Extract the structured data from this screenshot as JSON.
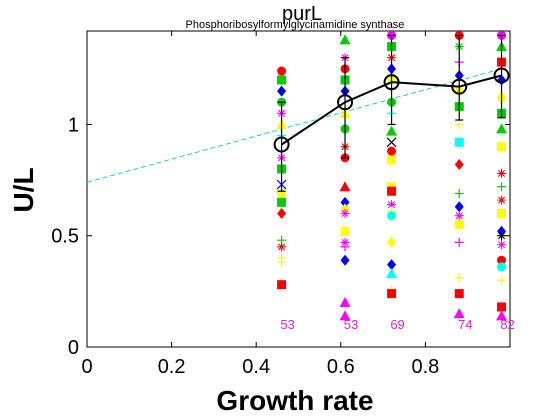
{
  "chart_data": {
    "type": "scatter",
    "title": "purL",
    "subtitle": "Phosphoribosylformylglycinamidine synthase",
    "xlabel": "Growth rate",
    "ylabel": "U/L",
    "xlim": [
      0,
      1.0
    ],
    "ylim": [
      0,
      1.42
    ],
    "xticks": [
      "0",
      "0.2",
      "0.4",
      "0.6",
      "0.8"
    ],
    "yticks": [
      "0",
      "0.5",
      "1"
    ],
    "xtick_values": [
      0,
      0.2,
      0.4,
      0.6,
      0.8
    ],
    "ytick_values": [
      0,
      0.5,
      1
    ],
    "grid": false,
    "mean_series": {
      "x": [
        0.46,
        0.61,
        0.72,
        0.88,
        0.98
      ],
      "y": [
        0.91,
        1.1,
        1.19,
        1.17,
        1.22
      ],
      "err_low": [
        0.7,
        0.85,
        1.0,
        1.02,
        1.03
      ],
      "err_high": [
        1.1,
        1.3,
        1.4,
        1.4,
        1.4
      ],
      "color": "#000000"
    },
    "fit_line": {
      "x": [
        0.0,
        0.98
      ],
      "y": [
        0.74,
        1.25
      ],
      "color": "#22c8e0"
    },
    "counts": [
      {
        "x": 0.46,
        "label": "53"
      },
      {
        "x": 0.61,
        "label": "53"
      },
      {
        "x": 0.72,
        "label": "69"
      },
      {
        "x": 0.88,
        "label": "74"
      },
      {
        "x": 0.98,
        "label": "82"
      }
    ],
    "scatter_points": [
      {
        "x": 0.46,
        "y": 1.24,
        "c": "#ff0000",
        "m": "circle"
      },
      {
        "x": 0.46,
        "y": 1.2,
        "c": "#00cc00",
        "m": "square"
      },
      {
        "x": 0.46,
        "y": 1.15,
        "c": "#0000ff",
        "m": "diamond"
      },
      {
        "x": 0.46,
        "y": 1.1,
        "c": "#00cc00",
        "m": "circle"
      },
      {
        "x": 0.46,
        "y": 1.05,
        "c": "#ff00ff",
        "m": "star"
      },
      {
        "x": 0.46,
        "y": 1.0,
        "c": "#ffff00",
        "m": "triangle"
      },
      {
        "x": 0.46,
        "y": 0.95,
        "c": "#00ffff",
        "m": "plus"
      },
      {
        "x": 0.46,
        "y": 0.85,
        "c": "#ff00ff",
        "m": "star"
      },
      {
        "x": 0.46,
        "y": 0.8,
        "c": "#00cc00",
        "m": "square"
      },
      {
        "x": 0.46,
        "y": 0.73,
        "c": "#0000ff",
        "m": "x"
      },
      {
        "x": 0.46,
        "y": 0.69,
        "c": "#ffff00",
        "m": "circle"
      },
      {
        "x": 0.46,
        "y": 0.65,
        "c": "#00cc00",
        "m": "square"
      },
      {
        "x": 0.46,
        "y": 0.6,
        "c": "#ff0000",
        "m": "diamond"
      },
      {
        "x": 0.46,
        "y": 0.48,
        "c": "#00cc00",
        "m": "plus"
      },
      {
        "x": 0.46,
        "y": 0.45,
        "c": "#ff0000",
        "m": "star"
      },
      {
        "x": 0.46,
        "y": 0.4,
        "c": "#ffff00",
        "m": "plus"
      },
      {
        "x": 0.46,
        "y": 0.38,
        "c": "#ffff00",
        "m": "plus"
      },
      {
        "x": 0.46,
        "y": 0.28,
        "c": "#ff0000",
        "m": "square"
      },
      {
        "x": 0.61,
        "y": 1.38,
        "c": "#00cc00",
        "m": "triangle"
      },
      {
        "x": 0.61,
        "y": 1.3,
        "c": "#ff00ff",
        "m": "star"
      },
      {
        "x": 0.61,
        "y": 1.25,
        "c": "#ff0000",
        "m": "circle"
      },
      {
        "x": 0.61,
        "y": 1.2,
        "c": "#00cc00",
        "m": "square"
      },
      {
        "x": 0.61,
        "y": 1.15,
        "c": "#0000ff",
        "m": "diamond"
      },
      {
        "x": 0.61,
        "y": 1.05,
        "c": "#ffff00",
        "m": "triangle"
      },
      {
        "x": 0.61,
        "y": 0.98,
        "c": "#00cc00",
        "m": "circle"
      },
      {
        "x": 0.61,
        "y": 0.9,
        "c": "#ff0000",
        "m": "star"
      },
      {
        "x": 0.61,
        "y": 0.85,
        "c": "#ff0000",
        "m": "circle"
      },
      {
        "x": 0.61,
        "y": 0.72,
        "c": "#ff0000",
        "m": "triangle"
      },
      {
        "x": 0.61,
        "y": 0.65,
        "c": "#0000ff",
        "m": "diamond"
      },
      {
        "x": 0.61,
        "y": 0.62,
        "c": "#ffff00",
        "m": "diamond"
      },
      {
        "x": 0.61,
        "y": 0.6,
        "c": "#ff00ff",
        "m": "star"
      },
      {
        "x": 0.61,
        "y": 0.52,
        "c": "#ffff00",
        "m": "square"
      },
      {
        "x": 0.61,
        "y": 0.47,
        "c": "#ff00ff",
        "m": "star"
      },
      {
        "x": 0.61,
        "y": 0.45,
        "c": "#ff00ff",
        "m": "plus"
      },
      {
        "x": 0.61,
        "y": 0.39,
        "c": "#0000ff",
        "m": "diamond"
      },
      {
        "x": 0.61,
        "y": 0.2,
        "c": "#ff00ff",
        "m": "triangle"
      },
      {
        "x": 0.61,
        "y": 0.14,
        "c": "#ff00ff",
        "m": "triangle"
      },
      {
        "x": 0.72,
        "y": 1.4,
        "c": "#ff00ff",
        "m": "circle"
      },
      {
        "x": 0.72,
        "y": 1.35,
        "c": "#00cc00",
        "m": "square"
      },
      {
        "x": 0.72,
        "y": 1.3,
        "c": "#ff0000",
        "m": "star"
      },
      {
        "x": 0.72,
        "y": 1.25,
        "c": "#0000ff",
        "m": "diamond"
      },
      {
        "x": 0.72,
        "y": 1.2,
        "c": "#ffff00",
        "m": "circle"
      },
      {
        "x": 0.72,
        "y": 1.1,
        "c": "#00cc00",
        "m": "circle"
      },
      {
        "x": 0.72,
        "y": 1.05,
        "c": "#00ffff",
        "m": "plus"
      },
      {
        "x": 0.72,
        "y": 0.97,
        "c": "#00cc00",
        "m": "triangle"
      },
      {
        "x": 0.72,
        "y": 0.92,
        "c": "#000000",
        "m": "x"
      },
      {
        "x": 0.72,
        "y": 0.88,
        "c": "#ff0000",
        "m": "circle"
      },
      {
        "x": 0.72,
        "y": 0.84,
        "c": "#ffff00",
        "m": "square"
      },
      {
        "x": 0.72,
        "y": 0.72,
        "c": "#ffff00",
        "m": "square"
      },
      {
        "x": 0.72,
        "y": 0.7,
        "c": "#ff0000",
        "m": "square"
      },
      {
        "x": 0.72,
        "y": 0.64,
        "c": "#ff00ff",
        "m": "star"
      },
      {
        "x": 0.72,
        "y": 0.61,
        "c": "#ffff00",
        "m": "plus"
      },
      {
        "x": 0.72,
        "y": 0.59,
        "c": "#00ffff",
        "m": "circle"
      },
      {
        "x": 0.72,
        "y": 0.47,
        "c": "#ffff00",
        "m": "diamond"
      },
      {
        "x": 0.72,
        "y": 0.37,
        "c": "#0000ff",
        "m": "diamond"
      },
      {
        "x": 0.72,
        "y": 0.33,
        "c": "#00ffff",
        "m": "triangle"
      },
      {
        "x": 0.72,
        "y": 0.26,
        "c": "#ffff00",
        "m": "plus"
      },
      {
        "x": 0.72,
        "y": 0.24,
        "c": "#ff0000",
        "m": "square"
      },
      {
        "x": 0.88,
        "y": 1.4,
        "c": "#ff0000",
        "m": "circle"
      },
      {
        "x": 0.88,
        "y": 1.35,
        "c": "#00cc00",
        "m": "star"
      },
      {
        "x": 0.88,
        "y": 1.28,
        "c": "#ff00ff",
        "m": "plus"
      },
      {
        "x": 0.88,
        "y": 1.22,
        "c": "#0000ff",
        "m": "diamond"
      },
      {
        "x": 0.88,
        "y": 1.15,
        "c": "#ffff00",
        "m": "circle"
      },
      {
        "x": 0.88,
        "y": 1.08,
        "c": "#00cc00",
        "m": "square"
      },
      {
        "x": 0.88,
        "y": 1.0,
        "c": "#ffff00",
        "m": "plus"
      },
      {
        "x": 0.88,
        "y": 0.92,
        "c": "#00ffff",
        "m": "square"
      },
      {
        "x": 0.88,
        "y": 0.82,
        "c": "#ff0000",
        "m": "diamond"
      },
      {
        "x": 0.88,
        "y": 0.69,
        "c": "#00cc00",
        "m": "plus"
      },
      {
        "x": 0.88,
        "y": 0.63,
        "c": "#0000ff",
        "m": "diamond"
      },
      {
        "x": 0.88,
        "y": 0.59,
        "c": "#ff00ff",
        "m": "star"
      },
      {
        "x": 0.88,
        "y": 0.55,
        "c": "#ffff00",
        "m": "square"
      },
      {
        "x": 0.88,
        "y": 0.47,
        "c": "#ff00ff",
        "m": "plus"
      },
      {
        "x": 0.88,
        "y": 0.31,
        "c": "#ffff00",
        "m": "plus"
      },
      {
        "x": 0.88,
        "y": 0.24,
        "c": "#ff0000",
        "m": "square"
      },
      {
        "x": 0.88,
        "y": 0.15,
        "c": "#ff00ff",
        "m": "triangle"
      },
      {
        "x": 0.98,
        "y": 1.4,
        "c": "#ff00ff",
        "m": "circle"
      },
      {
        "x": 0.98,
        "y": 1.35,
        "c": "#00cc00",
        "m": "triangle"
      },
      {
        "x": 0.98,
        "y": 1.28,
        "c": "#ff0000",
        "m": "square"
      },
      {
        "x": 0.98,
        "y": 1.2,
        "c": "#0000ff",
        "m": "diamond"
      },
      {
        "x": 0.98,
        "y": 1.12,
        "c": "#ffff00",
        "m": "circle"
      },
      {
        "x": 0.98,
        "y": 1.05,
        "c": "#00cc00",
        "m": "square"
      },
      {
        "x": 0.98,
        "y": 0.98,
        "c": "#00cc00",
        "m": "triangle"
      },
      {
        "x": 0.98,
        "y": 0.9,
        "c": "#ffff00",
        "m": "square"
      },
      {
        "x": 0.98,
        "y": 0.78,
        "c": "#ff0000",
        "m": "star"
      },
      {
        "x": 0.98,
        "y": 0.72,
        "c": "#00cc00",
        "m": "plus"
      },
      {
        "x": 0.98,
        "y": 0.66,
        "c": "#ff0000",
        "m": "star"
      },
      {
        "x": 0.98,
        "y": 0.6,
        "c": "#ffff00",
        "m": "square"
      },
      {
        "x": 0.98,
        "y": 0.52,
        "c": "#0000ff",
        "m": "diamond"
      },
      {
        "x": 0.98,
        "y": 0.5,
        "c": "#000000",
        "m": "star"
      },
      {
        "x": 0.98,
        "y": 0.46,
        "c": "#ff00ff",
        "m": "star"
      },
      {
        "x": 0.98,
        "y": 0.39,
        "c": "#ff0000",
        "m": "circle"
      },
      {
        "x": 0.98,
        "y": 0.36,
        "c": "#00ffff",
        "m": "circle"
      },
      {
        "x": 0.98,
        "y": 0.3,
        "c": "#ffff00",
        "m": "plus"
      },
      {
        "x": 0.98,
        "y": 0.18,
        "c": "#ff0000",
        "m": "square"
      },
      {
        "x": 0.98,
        "y": 0.14,
        "c": "#ff00ff",
        "m": "triangle"
      }
    ]
  }
}
